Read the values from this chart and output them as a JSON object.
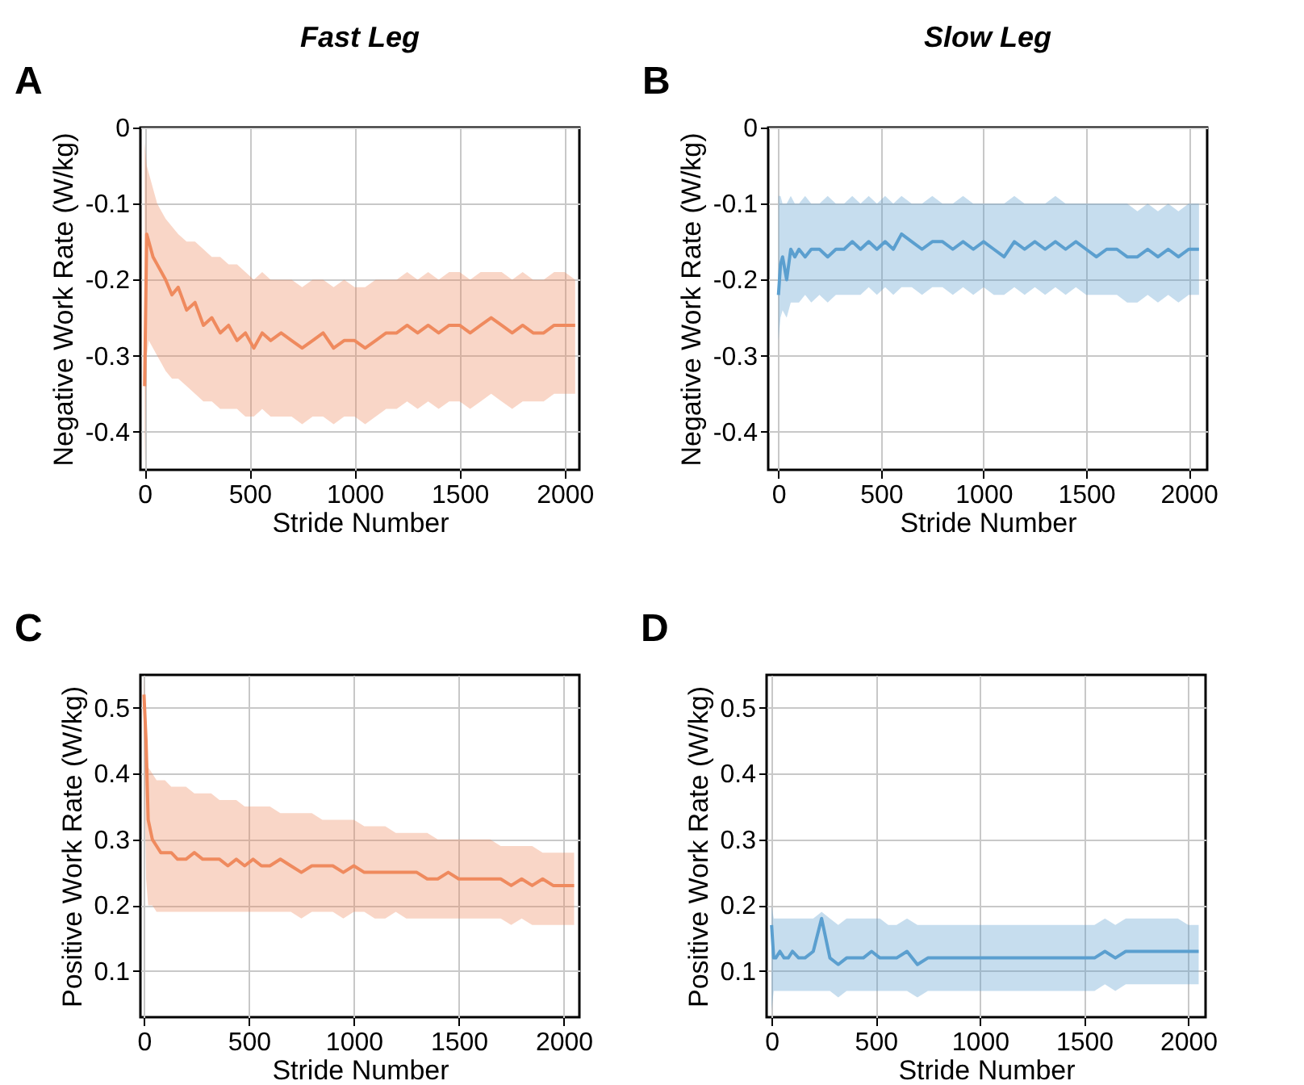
{
  "chart_data": [
    {
      "type": "line",
      "title": "Fast Leg",
      "xlabel": "Stride Number",
      "ylabel": "Negative Work Rate (W/kg)",
      "annotations": [
        "A"
      ],
      "grid": true,
      "xlim": [
        -20,
        2070
      ],
      "xticks": [
        0,
        500,
        1000,
        1500,
        2000
      ],
      "ylim": [
        -0.45,
        0
      ],
      "yticks": [
        -0.4,
        -0.3,
        -0.2,
        -0.1,
        0
      ],
      "x": [
        0,
        10,
        20,
        40,
        60,
        80,
        100,
        130,
        160,
        200,
        240,
        280,
        320,
        360,
        400,
        440,
        480,
        520,
        560,
        600,
        650,
        700,
        750,
        800,
        850,
        900,
        950,
        1000,
        1050,
        1100,
        1150,
        1200,
        1250,
        1300,
        1350,
        1400,
        1450,
        1500,
        1550,
        1600,
        1650,
        1700,
        1750,
        1800,
        1850,
        1900,
        1950,
        2000,
        2050
      ],
      "series": [
        {
          "color": "#ef8a5e",
          "values": [
            -0.34,
            -0.14,
            -0.15,
            -0.17,
            -0.18,
            -0.19,
            -0.2,
            -0.22,
            -0.21,
            -0.24,
            -0.23,
            -0.26,
            -0.25,
            -0.27,
            -0.26,
            -0.28,
            -0.27,
            -0.29,
            -0.27,
            -0.28,
            -0.27,
            -0.28,
            -0.29,
            -0.28,
            -0.27,
            -0.29,
            -0.28,
            -0.28,
            -0.29,
            -0.28,
            -0.27,
            -0.27,
            -0.26,
            -0.27,
            -0.26,
            -0.27,
            -0.26,
            -0.26,
            -0.27,
            -0.26,
            -0.25,
            -0.26,
            -0.27,
            -0.26,
            -0.27,
            -0.27,
            -0.26,
            -0.26,
            -0.26
          ],
          "upper": [
            -0.02,
            -0.05,
            -0.06,
            -0.08,
            -0.1,
            -0.11,
            -0.12,
            -0.13,
            -0.14,
            -0.15,
            -0.15,
            -0.16,
            -0.17,
            -0.17,
            -0.18,
            -0.18,
            -0.19,
            -0.2,
            -0.19,
            -0.2,
            -0.2,
            -0.2,
            -0.21,
            -0.2,
            -0.2,
            -0.21,
            -0.2,
            -0.21,
            -0.21,
            -0.2,
            -0.2,
            -0.2,
            -0.19,
            -0.2,
            -0.19,
            -0.2,
            -0.19,
            -0.19,
            -0.2,
            -0.19,
            -0.19,
            -0.19,
            -0.2,
            -0.19,
            -0.2,
            -0.2,
            -0.19,
            -0.19,
            -0.2
          ],
          "lower": [
            -0.45,
            -0.3,
            -0.28,
            -0.29,
            -0.3,
            -0.31,
            -0.32,
            -0.33,
            -0.33,
            -0.34,
            -0.35,
            -0.36,
            -0.36,
            -0.37,
            -0.37,
            -0.37,
            -0.38,
            -0.38,
            -0.37,
            -0.38,
            -0.38,
            -0.38,
            -0.39,
            -0.38,
            -0.38,
            -0.39,
            -0.38,
            -0.38,
            -0.39,
            -0.38,
            -0.37,
            -0.37,
            -0.36,
            -0.37,
            -0.36,
            -0.37,
            -0.36,
            -0.36,
            -0.37,
            -0.36,
            -0.35,
            -0.36,
            -0.37,
            -0.36,
            -0.36,
            -0.36,
            -0.35,
            -0.35,
            -0.35
          ]
        }
      ]
    },
    {
      "type": "line",
      "title": "Slow Leg",
      "xlabel": "Stride Number",
      "ylabel": "Negative Work Rate (W/kg)",
      "annotations": [
        "B"
      ],
      "grid": true,
      "xlim": [
        -50,
        2090
      ],
      "xticks": [
        0,
        500,
        1000,
        1500,
        2000
      ],
      "ylim": [
        -0.45,
        0
      ],
      "yticks": [
        -0.4,
        -0.3,
        -0.2,
        -0.1,
        0
      ],
      "x": [
        0,
        10,
        20,
        40,
        60,
        80,
        100,
        130,
        160,
        200,
        240,
        280,
        320,
        360,
        400,
        440,
        480,
        520,
        560,
        600,
        650,
        700,
        750,
        800,
        850,
        900,
        950,
        1000,
        1050,
        1100,
        1150,
        1200,
        1250,
        1300,
        1350,
        1400,
        1450,
        1500,
        1550,
        1600,
        1650,
        1700,
        1750,
        1800,
        1850,
        1900,
        1950,
        2000,
        2050
      ],
      "series": [
        {
          "color": "#5b9fcf",
          "values": [
            -0.22,
            -0.18,
            -0.17,
            -0.2,
            -0.16,
            -0.17,
            -0.16,
            -0.17,
            -0.16,
            -0.16,
            -0.17,
            -0.16,
            -0.16,
            -0.15,
            -0.16,
            -0.15,
            -0.16,
            -0.15,
            -0.16,
            -0.14,
            -0.15,
            -0.16,
            -0.15,
            -0.15,
            -0.16,
            -0.15,
            -0.16,
            -0.15,
            -0.16,
            -0.17,
            -0.15,
            -0.16,
            -0.15,
            -0.16,
            -0.15,
            -0.16,
            -0.15,
            -0.16,
            -0.17,
            -0.16,
            -0.16,
            -0.17,
            -0.17,
            -0.16,
            -0.17,
            -0.16,
            -0.17,
            -0.16,
            -0.16
          ],
          "upper": [
            -0.09,
            -0.09,
            -0.1,
            -0.1,
            -0.09,
            -0.1,
            -0.1,
            -0.09,
            -0.1,
            -0.1,
            -0.09,
            -0.1,
            -0.1,
            -0.09,
            -0.1,
            -0.09,
            -0.1,
            -0.09,
            -0.1,
            -0.09,
            -0.1,
            -0.1,
            -0.09,
            -0.1,
            -0.1,
            -0.09,
            -0.1,
            -0.1,
            -0.1,
            -0.1,
            -0.09,
            -0.1,
            -0.1,
            -0.1,
            -0.09,
            -0.1,
            -0.1,
            -0.1,
            -0.1,
            -0.1,
            -0.1,
            -0.1,
            -0.11,
            -0.1,
            -0.11,
            -0.1,
            -0.11,
            -0.1,
            -0.1
          ],
          "lower": [
            -0.28,
            -0.25,
            -0.24,
            -0.25,
            -0.23,
            -0.23,
            -0.23,
            -0.22,
            -0.23,
            -0.22,
            -0.23,
            -0.22,
            -0.22,
            -0.22,
            -0.22,
            -0.21,
            -0.22,
            -0.21,
            -0.22,
            -0.21,
            -0.21,
            -0.22,
            -0.21,
            -0.21,
            -0.22,
            -0.21,
            -0.22,
            -0.21,
            -0.22,
            -0.22,
            -0.21,
            -0.22,
            -0.21,
            -0.22,
            -0.21,
            -0.22,
            -0.21,
            -0.22,
            -0.22,
            -0.22,
            -0.22,
            -0.23,
            -0.23,
            -0.22,
            -0.23,
            -0.22,
            -0.23,
            -0.22,
            -0.22
          ]
        }
      ]
    },
    {
      "type": "line",
      "xlabel": "Stride Number",
      "ylabel": "Positive Work Rate (W/kg)",
      "annotations": [
        "C"
      ],
      "grid": true,
      "xlim": [
        -17,
        2075
      ],
      "xticks": [
        0,
        500,
        1000,
        1500,
        2000
      ],
      "ylim": [
        0.03,
        0.55
      ],
      "yticks": [
        0.1,
        0.2,
        0.3,
        0.4,
        0.5
      ],
      "x": [
        0,
        10,
        20,
        40,
        60,
        80,
        100,
        130,
        160,
        200,
        240,
        280,
        320,
        360,
        400,
        440,
        480,
        520,
        560,
        600,
        650,
        700,
        750,
        800,
        850,
        900,
        950,
        1000,
        1050,
        1100,
        1150,
        1200,
        1250,
        1300,
        1350,
        1400,
        1450,
        1500,
        1550,
        1600,
        1650,
        1700,
        1750,
        1800,
        1850,
        1900,
        1950,
        2000,
        2050
      ],
      "series": [
        {
          "color": "#ef8a5e",
          "values": [
            0.52,
            0.45,
            0.33,
            0.3,
            0.29,
            0.28,
            0.28,
            0.28,
            0.27,
            0.27,
            0.28,
            0.27,
            0.27,
            0.27,
            0.26,
            0.27,
            0.26,
            0.27,
            0.26,
            0.26,
            0.27,
            0.26,
            0.25,
            0.26,
            0.26,
            0.26,
            0.25,
            0.26,
            0.25,
            0.25,
            0.25,
            0.25,
            0.25,
            0.25,
            0.24,
            0.24,
            0.25,
            0.24,
            0.24,
            0.24,
            0.24,
            0.24,
            0.23,
            0.24,
            0.23,
            0.24,
            0.23,
            0.23,
            0.23
          ],
          "upper": [
            0.55,
            0.46,
            0.41,
            0.4,
            0.39,
            0.39,
            0.39,
            0.38,
            0.38,
            0.38,
            0.37,
            0.37,
            0.37,
            0.36,
            0.36,
            0.36,
            0.35,
            0.35,
            0.35,
            0.35,
            0.34,
            0.34,
            0.34,
            0.34,
            0.33,
            0.33,
            0.33,
            0.33,
            0.32,
            0.32,
            0.32,
            0.31,
            0.31,
            0.31,
            0.31,
            0.3,
            0.3,
            0.3,
            0.3,
            0.3,
            0.3,
            0.29,
            0.29,
            0.29,
            0.29,
            0.28,
            0.28,
            0.28,
            0.28
          ],
          "lower": [
            0.45,
            0.24,
            0.2,
            0.2,
            0.19,
            0.19,
            0.19,
            0.19,
            0.19,
            0.19,
            0.19,
            0.19,
            0.19,
            0.19,
            0.19,
            0.19,
            0.19,
            0.19,
            0.19,
            0.19,
            0.19,
            0.19,
            0.18,
            0.19,
            0.19,
            0.19,
            0.18,
            0.19,
            0.19,
            0.18,
            0.18,
            0.19,
            0.18,
            0.18,
            0.18,
            0.18,
            0.18,
            0.18,
            0.18,
            0.18,
            0.18,
            0.18,
            0.17,
            0.18,
            0.17,
            0.17,
            0.17,
            0.17,
            0.17
          ]
        }
      ]
    },
    {
      "type": "line",
      "xlabel": "Stride Number",
      "ylabel": "Positive Work Rate (W/kg)",
      "annotations": [
        "D"
      ],
      "grid": true,
      "xlim": [
        -24,
        2083
      ],
      "xticks": [
        0,
        500,
        1000,
        1500,
        2000
      ],
      "ylim": [
        0.03,
        0.55
      ],
      "yticks": [
        0.1,
        0.2,
        0.3,
        0.4,
        0.5
      ],
      "x": [
        0,
        10,
        20,
        40,
        60,
        80,
        100,
        130,
        160,
        200,
        240,
        280,
        320,
        360,
        400,
        440,
        480,
        520,
        560,
        600,
        650,
        700,
        750,
        800,
        850,
        900,
        950,
        1000,
        1050,
        1100,
        1150,
        1200,
        1250,
        1300,
        1350,
        1400,
        1450,
        1500,
        1550,
        1600,
        1650,
        1700,
        1750,
        1800,
        1850,
        1900,
        1950,
        2000,
        2050
      ],
      "series": [
        {
          "color": "#5b9fcf",
          "values": [
            0.17,
            0.12,
            0.12,
            0.13,
            0.12,
            0.12,
            0.13,
            0.12,
            0.12,
            0.13,
            0.18,
            0.12,
            0.11,
            0.12,
            0.12,
            0.12,
            0.13,
            0.12,
            0.12,
            0.12,
            0.13,
            0.11,
            0.12,
            0.12,
            0.12,
            0.12,
            0.12,
            0.12,
            0.12,
            0.12,
            0.12,
            0.12,
            0.12,
            0.12,
            0.12,
            0.12,
            0.12,
            0.12,
            0.12,
            0.13,
            0.12,
            0.13,
            0.13,
            0.13,
            0.13,
            0.13,
            0.13,
            0.13,
            0.13
          ],
          "upper": [
            0.2,
            0.18,
            0.18,
            0.18,
            0.18,
            0.18,
            0.18,
            0.18,
            0.18,
            0.18,
            0.19,
            0.18,
            0.17,
            0.18,
            0.18,
            0.18,
            0.18,
            0.18,
            0.17,
            0.17,
            0.18,
            0.17,
            0.17,
            0.17,
            0.17,
            0.17,
            0.17,
            0.17,
            0.17,
            0.17,
            0.17,
            0.17,
            0.17,
            0.17,
            0.17,
            0.17,
            0.17,
            0.17,
            0.17,
            0.18,
            0.17,
            0.18,
            0.18,
            0.18,
            0.18,
            0.18,
            0.18,
            0.17,
            0.17
          ],
          "lower": [
            0.04,
            0.07,
            0.07,
            0.07,
            0.07,
            0.07,
            0.07,
            0.07,
            0.07,
            0.07,
            0.07,
            0.07,
            0.06,
            0.07,
            0.07,
            0.07,
            0.07,
            0.07,
            0.07,
            0.07,
            0.07,
            0.06,
            0.07,
            0.07,
            0.07,
            0.07,
            0.07,
            0.07,
            0.07,
            0.07,
            0.07,
            0.07,
            0.07,
            0.07,
            0.07,
            0.07,
            0.07,
            0.07,
            0.07,
            0.08,
            0.07,
            0.08,
            0.08,
            0.08,
            0.08,
            0.08,
            0.08,
            0.08,
            0.08
          ]
        }
      ]
    }
  ]
}
